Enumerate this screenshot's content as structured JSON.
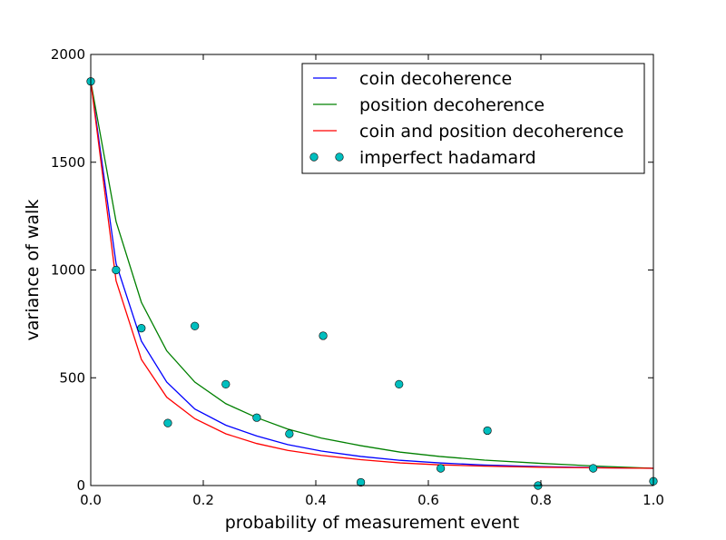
{
  "chart_data": {
    "type": "line",
    "xlabel": "probability of measurement event",
    "ylabel": "variance of walk",
    "xlim": [
      0,
      1
    ],
    "ylim": [
      0,
      2000
    ],
    "xticks": [
      0,
      0.2,
      0.4,
      0.6,
      0.8,
      1
    ],
    "xtick_labels": [
      "0.0",
      "0.2",
      "0.4",
      "0.6",
      "0.8",
      "1.0"
    ],
    "yticks": [
      0,
      500,
      1000,
      1500,
      2000
    ],
    "ytick_labels": [
      "0",
      "500",
      "1000",
      "1500",
      "2000"
    ],
    "grid": false,
    "legend_position": "upper-right",
    "series": [
      {
        "name": "coin decoherence",
        "kind": "line",
        "color": "#0000ff",
        "x": [
          0,
          0.045,
          0.09,
          0.135,
          0.185,
          0.24,
          0.295,
          0.35,
          0.41,
          0.48,
          0.55,
          0.62,
          0.7,
          0.8,
          0.9,
          1.0
        ],
        "y": [
          1875,
          1030,
          670,
          480,
          355,
          280,
          230,
          190,
          160,
          135,
          117,
          105,
          95,
          88,
          83,
          80
        ]
      },
      {
        "name": "position decoherence",
        "kind": "line",
        "color": "#008000",
        "x": [
          0,
          0.045,
          0.09,
          0.135,
          0.185,
          0.24,
          0.295,
          0.35,
          0.41,
          0.48,
          0.55,
          0.62,
          0.7,
          0.8,
          0.9,
          1.0
        ],
        "y": [
          1875,
          1225,
          850,
          625,
          480,
          380,
          315,
          262,
          220,
          185,
          155,
          135,
          118,
          103,
          90,
          80
        ]
      },
      {
        "name": "coin and position decoherence",
        "kind": "line",
        "color": "#ff0000",
        "x": [
          0,
          0.045,
          0.09,
          0.135,
          0.185,
          0.24,
          0.295,
          0.35,
          0.41,
          0.48,
          0.55,
          0.62,
          0.7,
          0.8,
          0.9,
          1.0
        ],
        "y": [
          1875,
          950,
          585,
          410,
          310,
          240,
          195,
          163,
          140,
          120,
          105,
          96,
          90,
          85,
          82,
          80
        ]
      },
      {
        "name": "imperfect hadamard",
        "kind": "markers",
        "color": "#00bfbf",
        "x": [
          0,
          0.045,
          0.09,
          0.137,
          0.185,
          0.24,
          0.295,
          0.353,
          0.413,
          0.48,
          0.548,
          0.622,
          0.705,
          0.795,
          0.893,
          1.0
        ],
        "y": [
          1875,
          1000,
          730,
          290,
          740,
          470,
          315,
          240,
          695,
          15,
          470,
          80,
          255,
          0,
          80,
          20
        ]
      }
    ]
  }
}
